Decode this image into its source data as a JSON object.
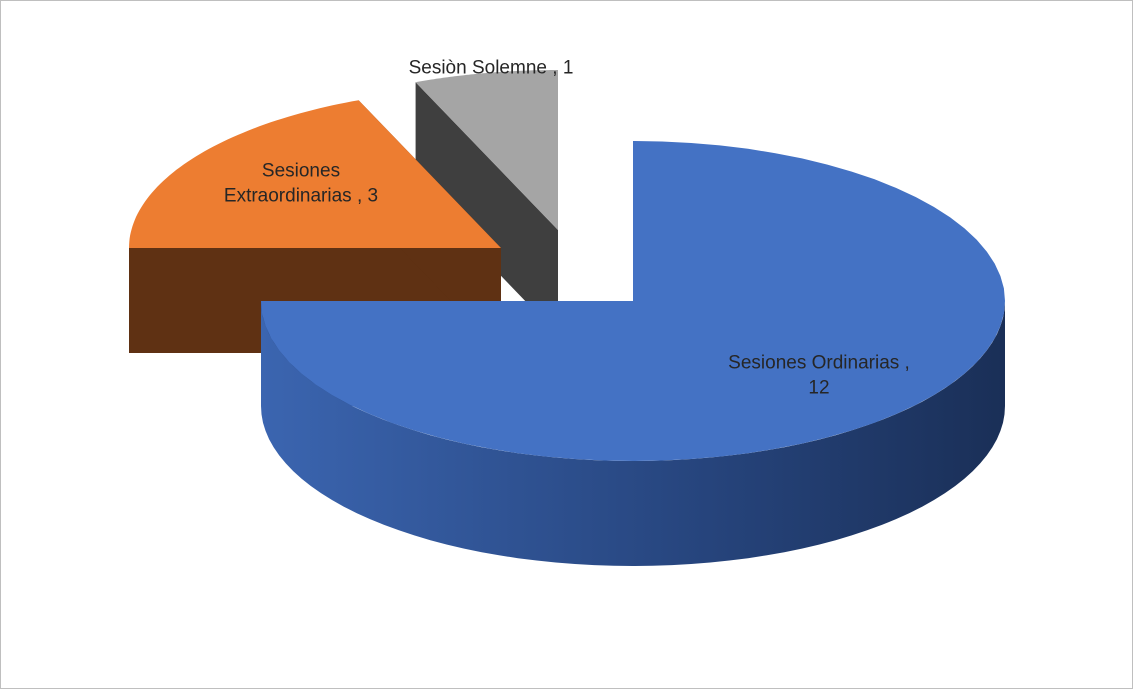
{
  "chart_data": {
    "type": "pie3d",
    "categories": [
      "Sesiones Ordinarias",
      "Sesiones Extraordinarias",
      "Sesiòn Solemne"
    ],
    "values": [
      12,
      3,
      1
    ],
    "label_separator": " , ",
    "colors": [
      "#4472c4",
      "#ed7d31",
      "#a5a5a5"
    ],
    "side_colors": [
      "#2b4c8a",
      "#5f3113",
      "#3f3f3f"
    ]
  }
}
